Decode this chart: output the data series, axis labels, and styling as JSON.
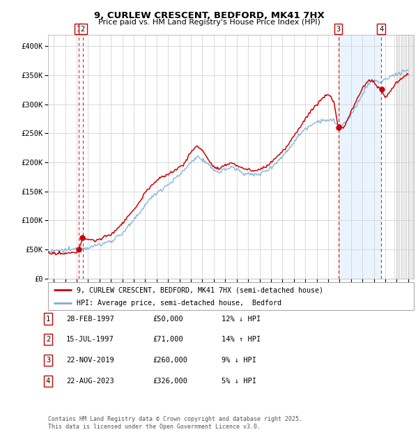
{
  "title": "9, CURLEW CRESCENT, BEDFORD, MK41 7HX",
  "subtitle": "Price paid vs. HM Land Registry's House Price Index (HPI)",
  "transactions": [
    {
      "num": 1,
      "date_str": "28-FEB-1997",
      "date_x": 1997.16,
      "price": 50000,
      "pct": "12%",
      "dir": "↓"
    },
    {
      "num": 2,
      "date_str": "15-JUL-1997",
      "date_x": 1997.54,
      "price": 71000,
      "pct": "14%",
      "dir": "↑"
    },
    {
      "num": 3,
      "date_str": "22-NOV-2019",
      "date_x": 2019.89,
      "price": 260000,
      "pct": "9%",
      "dir": "↓"
    },
    {
      "num": 4,
      "date_str": "22-AUG-2023",
      "date_x": 2023.64,
      "price": 326000,
      "pct": "5%",
      "dir": "↓"
    }
  ],
  "hpi_line_color": "#7aaddc",
  "price_line_color": "#cc0000",
  "marker_color": "#cc0000",
  "transaction_vline_color": "#cc0000",
  "shade_color": "#ddeeff",
  "ylim": [
    0,
    420000
  ],
  "xlim": [
    1994.5,
    2026.5
  ],
  "ylabel_ticks": [
    0,
    50000,
    100000,
    150000,
    200000,
    250000,
    300000,
    350000,
    400000
  ],
  "xticks": [
    1995,
    1996,
    1997,
    1998,
    1999,
    2000,
    2001,
    2002,
    2003,
    2004,
    2005,
    2006,
    2007,
    2008,
    2009,
    2010,
    2011,
    2012,
    2013,
    2014,
    2015,
    2016,
    2017,
    2018,
    2019,
    2020,
    2021,
    2022,
    2023,
    2024,
    2025,
    2026
  ],
  "legend_label_price": "9, CURLEW CRESCENT, BEDFORD, MK41 7HX (semi-detached house)",
  "legend_label_hpi": "HPI: Average price, semi-detached house,  Bedford",
  "footer": "Contains HM Land Registry data © Crown copyright and database right 2025.\nThis data is licensed under the Open Government Licence v3.0.",
  "table_rows": [
    [
      "1",
      "28-FEB-1997",
      "£50,000",
      "12% ↓ HPI"
    ],
    [
      "2",
      "15-JUL-1997",
      "£71,000",
      "14% ↑ HPI"
    ],
    [
      "3",
      "22-NOV-2019",
      "£260,000",
      "9% ↓ HPI"
    ],
    [
      "4",
      "22-AUG-2023",
      "£326,000",
      "5% ↓ HPI"
    ]
  ],
  "hpi_anchors": [
    [
      1994.5,
      46000
    ],
    [
      1995.0,
      47000
    ],
    [
      1996.0,
      49000
    ],
    [
      1997.0,
      51000
    ],
    [
      1998.0,
      54000
    ],
    [
      1999.0,
      58000
    ],
    [
      2000.0,
      65000
    ],
    [
      2001.0,
      78000
    ],
    [
      2002.0,
      100000
    ],
    [
      2002.5,
      112000
    ],
    [
      2003.0,
      128000
    ],
    [
      2004.0,
      148000
    ],
    [
      2005.0,
      162000
    ],
    [
      2006.0,
      178000
    ],
    [
      2007.0,
      200000
    ],
    [
      2007.5,
      210000
    ],
    [
      2008.0,
      205000
    ],
    [
      2008.5,
      195000
    ],
    [
      2009.0,
      188000
    ],
    [
      2009.5,
      183000
    ],
    [
      2010.0,
      188000
    ],
    [
      2010.5,
      192000
    ],
    [
      2011.0,
      188000
    ],
    [
      2011.5,
      183000
    ],
    [
      2012.0,
      180000
    ],
    [
      2012.5,
      178000
    ],
    [
      2013.0,
      180000
    ],
    [
      2013.5,
      185000
    ],
    [
      2014.0,
      192000
    ],
    [
      2014.5,
      200000
    ],
    [
      2015.0,
      210000
    ],
    [
      2015.5,
      222000
    ],
    [
      2016.0,
      235000
    ],
    [
      2016.5,
      248000
    ],
    [
      2017.0,
      258000
    ],
    [
      2017.5,
      265000
    ],
    [
      2018.0,
      270000
    ],
    [
      2018.5,
      273000
    ],
    [
      2019.0,
      272000
    ],
    [
      2019.5,
      272000
    ],
    [
      2020.0,
      260000
    ],
    [
      2020.5,
      268000
    ],
    [
      2021.0,
      280000
    ],
    [
      2021.5,
      298000
    ],
    [
      2022.0,
      318000
    ],
    [
      2022.5,
      335000
    ],
    [
      2023.0,
      340000
    ],
    [
      2023.5,
      338000
    ],
    [
      2024.0,
      342000
    ],
    [
      2024.5,
      348000
    ],
    [
      2025.0,
      352000
    ],
    [
      2025.5,
      356000
    ],
    [
      2026.0,
      360000
    ]
  ],
  "price_anchors": [
    [
      1994.5,
      44000
    ],
    [
      1995.0,
      43000
    ],
    [
      1995.5,
      42500
    ],
    [
      1996.0,
      43000
    ],
    [
      1996.5,
      44000
    ],
    [
      1997.0,
      45000
    ],
    [
      1997.16,
      50000
    ],
    [
      1997.54,
      71000
    ],
    [
      1998.0,
      68000
    ],
    [
      1998.5,
      65000
    ],
    [
      1999.0,
      68000
    ],
    [
      1999.5,
      72000
    ],
    [
      2000.0,
      76000
    ],
    [
      2000.5,
      85000
    ],
    [
      2001.0,
      95000
    ],
    [
      2001.5,
      108000
    ],
    [
      2002.0,
      118000
    ],
    [
      2002.5,
      132000
    ],
    [
      2003.0,
      148000
    ],
    [
      2003.5,
      160000
    ],
    [
      2004.0,
      168000
    ],
    [
      2004.5,
      175000
    ],
    [
      2005.0,
      180000
    ],
    [
      2005.5,
      185000
    ],
    [
      2006.0,
      192000
    ],
    [
      2006.5,
      200000
    ],
    [
      2007.0,
      218000
    ],
    [
      2007.5,
      228000
    ],
    [
      2008.0,
      222000
    ],
    [
      2008.5,
      205000
    ],
    [
      2009.0,
      192000
    ],
    [
      2009.5,
      188000
    ],
    [
      2010.0,
      195000
    ],
    [
      2010.5,
      200000
    ],
    [
      2011.0,
      195000
    ],
    [
      2011.5,
      190000
    ],
    [
      2012.0,
      188000
    ],
    [
      2012.5,
      185000
    ],
    [
      2013.0,
      188000
    ],
    [
      2013.5,
      192000
    ],
    [
      2014.0,
      200000
    ],
    [
      2014.5,
      210000
    ],
    [
      2015.0,
      218000
    ],
    [
      2015.5,
      230000
    ],
    [
      2016.0,
      245000
    ],
    [
      2016.5,
      260000
    ],
    [
      2017.0,
      275000
    ],
    [
      2017.5,
      288000
    ],
    [
      2018.0,
      300000
    ],
    [
      2018.5,
      310000
    ],
    [
      2019.0,
      318000
    ],
    [
      2019.5,
      305000
    ],
    [
      2019.89,
      260000
    ],
    [
      2020.0,
      265000
    ],
    [
      2020.3,
      258000
    ],
    [
      2020.5,
      265000
    ],
    [
      2020.8,
      278000
    ],
    [
      2021.0,
      288000
    ],
    [
      2021.3,
      298000
    ],
    [
      2021.5,
      308000
    ],
    [
      2021.8,
      318000
    ],
    [
      2022.0,
      328000
    ],
    [
      2022.3,
      335000
    ],
    [
      2022.5,
      340000
    ],
    [
      2022.8,
      342000
    ],
    [
      2023.0,
      338000
    ],
    [
      2023.3,
      330000
    ],
    [
      2023.64,
      326000
    ],
    [
      2023.8,
      318000
    ],
    [
      2024.0,
      312000
    ],
    [
      2024.3,
      318000
    ],
    [
      2024.5,
      325000
    ],
    [
      2024.8,
      332000
    ],
    [
      2025.0,
      338000
    ],
    [
      2025.5,
      345000
    ],
    [
      2026.0,
      352000
    ]
  ]
}
